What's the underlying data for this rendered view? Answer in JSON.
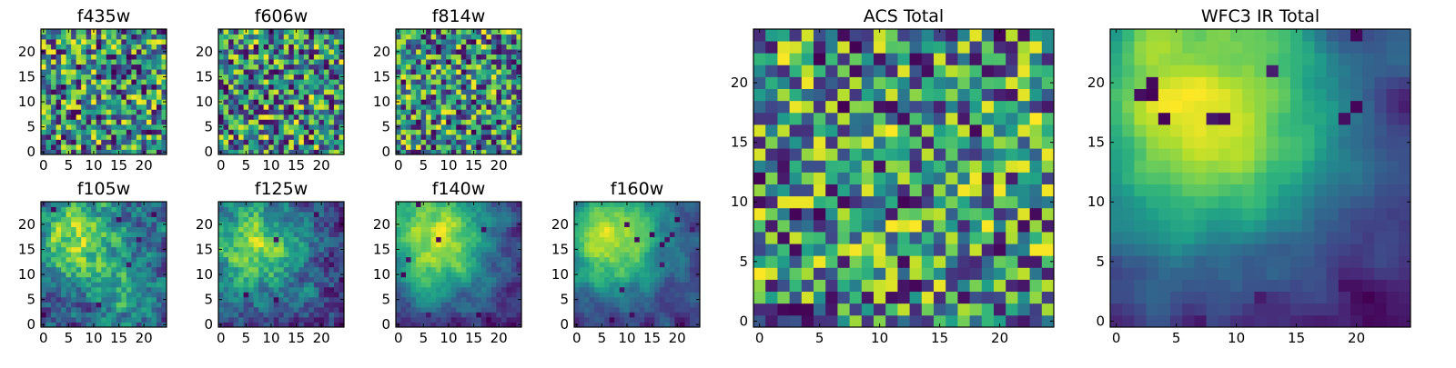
{
  "chart_data": [
    {
      "type": "heatmap",
      "title": "f435w",
      "xticks": [
        0,
        5,
        10,
        15,
        20
      ],
      "yticks": [
        0,
        5,
        10,
        15,
        20
      ],
      "grid_size": 25,
      "seed": 11,
      "smooth": 0,
      "blobs": [],
      "holes": 10
    },
    {
      "type": "heatmap",
      "title": "f606w",
      "xticks": [
        0,
        5,
        10,
        15,
        20
      ],
      "yticks": [
        0,
        5,
        10,
        15,
        20
      ],
      "grid_size": 25,
      "seed": 23,
      "smooth": 0,
      "blobs": [],
      "holes": 12
    },
    {
      "type": "heatmap",
      "title": "f814w",
      "xticks": [
        0,
        5,
        10,
        15,
        20
      ],
      "yticks": [
        0,
        5,
        10,
        15,
        20
      ],
      "grid_size": 25,
      "seed": 37,
      "smooth": 0,
      "blobs": [],
      "holes": 9
    },
    {
      "type": "heatmap",
      "title": "f105w",
      "xticks": [
        0,
        5,
        10,
        15,
        20
      ],
      "yticks": [
        0,
        5,
        10,
        15,
        20
      ],
      "grid_size": 25,
      "seed": 41,
      "smooth": 1,
      "blobs": [
        [
          7,
          17,
          6,
          0.35
        ],
        [
          16,
          7,
          4,
          0.2
        ]
      ],
      "holes": 6
    },
    {
      "type": "heatmap",
      "title": "f125w",
      "xticks": [
        0,
        5,
        10,
        15,
        20
      ],
      "yticks": [
        0,
        5,
        10,
        15,
        20
      ],
      "grid_size": 25,
      "seed": 53,
      "smooth": 1,
      "blobs": [
        [
          7,
          16,
          7,
          0.4
        ]
      ],
      "holes": 5
    },
    {
      "type": "heatmap",
      "title": "f140w",
      "xticks": [
        0,
        5,
        10,
        15,
        20
      ],
      "yticks": [
        0,
        5,
        10,
        15,
        20
      ],
      "grid_size": 25,
      "seed": 67,
      "smooth": 2,
      "blobs": [
        [
          7,
          17,
          8,
          0.55
        ]
      ],
      "holes": 7
    },
    {
      "type": "heatmap",
      "title": "f160w",
      "xticks": [
        0,
        5,
        10,
        15,
        20
      ],
      "yticks": [
        0,
        5,
        10,
        15,
        20
      ],
      "grid_size": 25,
      "seed": 79,
      "smooth": 2,
      "blobs": [
        [
          7,
          17,
          8,
          0.6
        ]
      ],
      "holes": 12
    },
    {
      "type": "heatmap",
      "title": "ACS Total",
      "xticks": [
        0,
        5,
        10,
        15,
        20
      ],
      "yticks": [
        0,
        5,
        10,
        15,
        20
      ],
      "grid_size": 25,
      "seed": 97,
      "smooth": 0,
      "blobs": [],
      "holes": 7
    },
    {
      "type": "heatmap",
      "title": "WFC3 IR Total",
      "xticks": [
        0,
        5,
        10,
        15,
        20
      ],
      "yticks": [
        0,
        5,
        10,
        15,
        20
      ],
      "grid_size": 25,
      "seed": 113,
      "smooth": 3,
      "blobs": [
        [
          7,
          18,
          9,
          0.75
        ]
      ],
      "holes": 14
    }
  ],
  "colormap": "viridis"
}
